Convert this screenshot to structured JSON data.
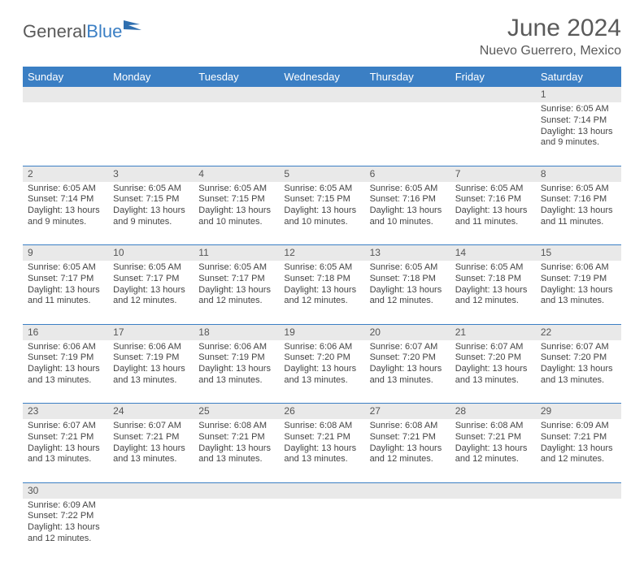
{
  "logo": {
    "general": "General",
    "blue": "Blue"
  },
  "title": "June 2024",
  "location": "Nuevo Guerrero, Mexico",
  "colors": {
    "header_bg": "#3b7fc4",
    "header_text": "#ffffff",
    "daynum_bg": "#e9e9e9",
    "row_divider": "#3b7fc4",
    "text": "#444444"
  },
  "daysOfWeek": [
    "Sunday",
    "Monday",
    "Tuesday",
    "Wednesday",
    "Thursday",
    "Friday",
    "Saturday"
  ],
  "weeks": [
    [
      null,
      null,
      null,
      null,
      null,
      null,
      {
        "n": "1",
        "sr": "Sunrise: 6:05 AM",
        "ss": "Sunset: 7:14 PM",
        "dl": "Daylight: 13 hours and 9 minutes."
      }
    ],
    [
      {
        "n": "2",
        "sr": "Sunrise: 6:05 AM",
        "ss": "Sunset: 7:14 PM",
        "dl": "Daylight: 13 hours and 9 minutes."
      },
      {
        "n": "3",
        "sr": "Sunrise: 6:05 AM",
        "ss": "Sunset: 7:15 PM",
        "dl": "Daylight: 13 hours and 9 minutes."
      },
      {
        "n": "4",
        "sr": "Sunrise: 6:05 AM",
        "ss": "Sunset: 7:15 PM",
        "dl": "Daylight: 13 hours and 10 minutes."
      },
      {
        "n": "5",
        "sr": "Sunrise: 6:05 AM",
        "ss": "Sunset: 7:15 PM",
        "dl": "Daylight: 13 hours and 10 minutes."
      },
      {
        "n": "6",
        "sr": "Sunrise: 6:05 AM",
        "ss": "Sunset: 7:16 PM",
        "dl": "Daylight: 13 hours and 10 minutes."
      },
      {
        "n": "7",
        "sr": "Sunrise: 6:05 AM",
        "ss": "Sunset: 7:16 PM",
        "dl": "Daylight: 13 hours and 11 minutes."
      },
      {
        "n": "8",
        "sr": "Sunrise: 6:05 AM",
        "ss": "Sunset: 7:16 PM",
        "dl": "Daylight: 13 hours and 11 minutes."
      }
    ],
    [
      {
        "n": "9",
        "sr": "Sunrise: 6:05 AM",
        "ss": "Sunset: 7:17 PM",
        "dl": "Daylight: 13 hours and 11 minutes."
      },
      {
        "n": "10",
        "sr": "Sunrise: 6:05 AM",
        "ss": "Sunset: 7:17 PM",
        "dl": "Daylight: 13 hours and 12 minutes."
      },
      {
        "n": "11",
        "sr": "Sunrise: 6:05 AM",
        "ss": "Sunset: 7:17 PM",
        "dl": "Daylight: 13 hours and 12 minutes."
      },
      {
        "n": "12",
        "sr": "Sunrise: 6:05 AM",
        "ss": "Sunset: 7:18 PM",
        "dl": "Daylight: 13 hours and 12 minutes."
      },
      {
        "n": "13",
        "sr": "Sunrise: 6:05 AM",
        "ss": "Sunset: 7:18 PM",
        "dl": "Daylight: 13 hours and 12 minutes."
      },
      {
        "n": "14",
        "sr": "Sunrise: 6:05 AM",
        "ss": "Sunset: 7:18 PM",
        "dl": "Daylight: 13 hours and 12 minutes."
      },
      {
        "n": "15",
        "sr": "Sunrise: 6:06 AM",
        "ss": "Sunset: 7:19 PM",
        "dl": "Daylight: 13 hours and 13 minutes."
      }
    ],
    [
      {
        "n": "16",
        "sr": "Sunrise: 6:06 AM",
        "ss": "Sunset: 7:19 PM",
        "dl": "Daylight: 13 hours and 13 minutes."
      },
      {
        "n": "17",
        "sr": "Sunrise: 6:06 AM",
        "ss": "Sunset: 7:19 PM",
        "dl": "Daylight: 13 hours and 13 minutes."
      },
      {
        "n": "18",
        "sr": "Sunrise: 6:06 AM",
        "ss": "Sunset: 7:19 PM",
        "dl": "Daylight: 13 hours and 13 minutes."
      },
      {
        "n": "19",
        "sr": "Sunrise: 6:06 AM",
        "ss": "Sunset: 7:20 PM",
        "dl": "Daylight: 13 hours and 13 minutes."
      },
      {
        "n": "20",
        "sr": "Sunrise: 6:07 AM",
        "ss": "Sunset: 7:20 PM",
        "dl": "Daylight: 13 hours and 13 minutes."
      },
      {
        "n": "21",
        "sr": "Sunrise: 6:07 AM",
        "ss": "Sunset: 7:20 PM",
        "dl": "Daylight: 13 hours and 13 minutes."
      },
      {
        "n": "22",
        "sr": "Sunrise: 6:07 AM",
        "ss": "Sunset: 7:20 PM",
        "dl": "Daylight: 13 hours and 13 minutes."
      }
    ],
    [
      {
        "n": "23",
        "sr": "Sunrise: 6:07 AM",
        "ss": "Sunset: 7:21 PM",
        "dl": "Daylight: 13 hours and 13 minutes."
      },
      {
        "n": "24",
        "sr": "Sunrise: 6:07 AM",
        "ss": "Sunset: 7:21 PM",
        "dl": "Daylight: 13 hours and 13 minutes."
      },
      {
        "n": "25",
        "sr": "Sunrise: 6:08 AM",
        "ss": "Sunset: 7:21 PM",
        "dl": "Daylight: 13 hours and 13 minutes."
      },
      {
        "n": "26",
        "sr": "Sunrise: 6:08 AM",
        "ss": "Sunset: 7:21 PM",
        "dl": "Daylight: 13 hours and 13 minutes."
      },
      {
        "n": "27",
        "sr": "Sunrise: 6:08 AM",
        "ss": "Sunset: 7:21 PM",
        "dl": "Daylight: 13 hours and 12 minutes."
      },
      {
        "n": "28",
        "sr": "Sunrise: 6:08 AM",
        "ss": "Sunset: 7:21 PM",
        "dl": "Daylight: 13 hours and 12 minutes."
      },
      {
        "n": "29",
        "sr": "Sunrise: 6:09 AM",
        "ss": "Sunset: 7:21 PM",
        "dl": "Daylight: 13 hours and 12 minutes."
      }
    ],
    [
      {
        "n": "30",
        "sr": "Sunrise: 6:09 AM",
        "ss": "Sunset: 7:22 PM",
        "dl": "Daylight: 13 hours and 12 minutes."
      },
      null,
      null,
      null,
      null,
      null,
      null
    ]
  ]
}
